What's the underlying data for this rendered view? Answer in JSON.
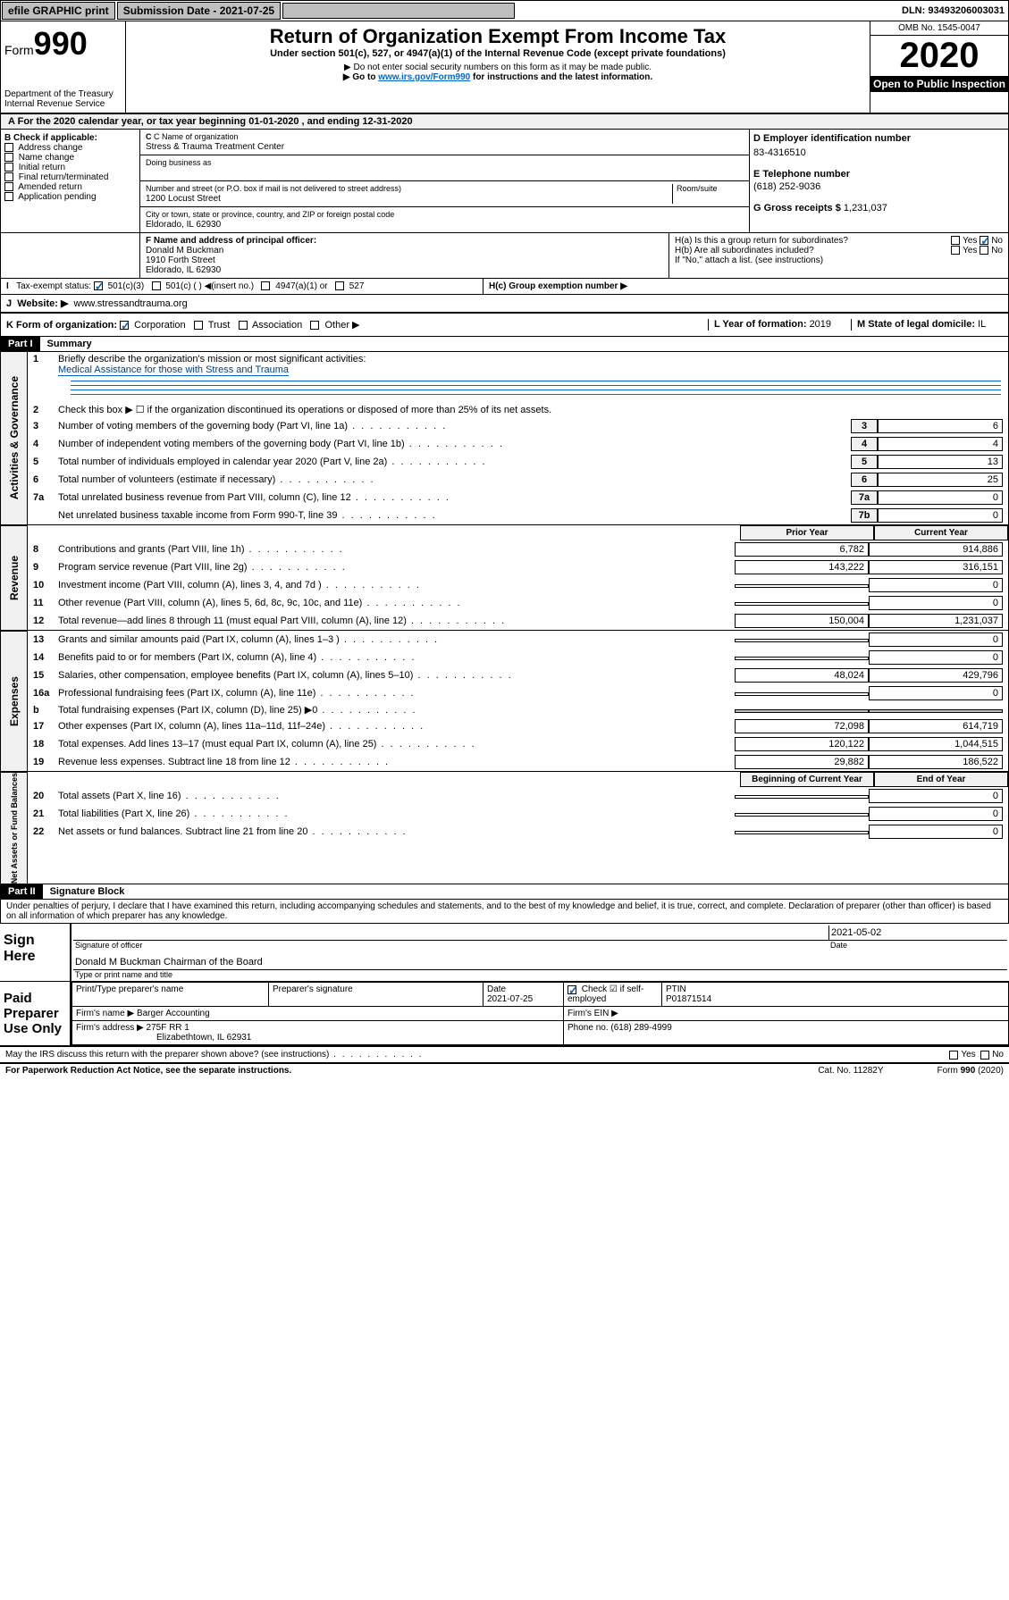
{
  "topbar": {
    "efile": "efile GRAPHIC print",
    "submission_label": "Submission Date - 2021-07-25",
    "dln": "DLN: 93493206003031"
  },
  "header": {
    "form_label": "Form",
    "form_no": "990",
    "dept": "Department of the Treasury",
    "irs": "Internal Revenue Service",
    "title": "Return of Organization Exempt From Income Tax",
    "subtitle": "Under section 501(c), 527, or 4947(a)(1) of the Internal Revenue Code (except private foundations)",
    "note1": "▶ Do not enter social security numbers on this form as it may be made public.",
    "note2_pre": "▶ Go to ",
    "note2_link": "www.irs.gov/Form990",
    "note2_post": " for instructions and the latest information.",
    "omb": "OMB No. 1545-0047",
    "year": "2020",
    "open": "Open to Public Inspection"
  },
  "period": {
    "text": "For the 2020 calendar year, or tax year beginning 01-01-2020   , and ending 12-31-2020"
  },
  "boxB": {
    "label": "B Check if applicable:",
    "items": [
      "Address change",
      "Name change",
      "Initial return",
      "Final return/terminated",
      "Amended return",
      "Application pending"
    ]
  },
  "boxC": {
    "name_label": "C Name of organization",
    "name": "Stress & Trauma Treatment Center",
    "dba_label": "Doing business as",
    "addr_label": "Number and street (or P.O. box if mail is not delivered to street address)",
    "room_label": "Room/suite",
    "addr": "1200 Locust Street",
    "city_label": "City or town, state or province, country, and ZIP or foreign postal code",
    "city": "Eldorado, IL  62930"
  },
  "boxD": {
    "label": "D Employer identification number",
    "value": "83-4316510"
  },
  "boxE": {
    "label": "E Telephone number",
    "value": "(618) 252-9036"
  },
  "boxG": {
    "label": "G Gross receipts $",
    "value": "1,231,037"
  },
  "boxF": {
    "label": "F  Name and address of principal officer:",
    "name": "Donald M Buckman",
    "addr1": "1910 Forth Street",
    "addr2": "Eldorado, IL  62930"
  },
  "boxH": {
    "a": "H(a)  Is this a group return for subordinates?",
    "b": "H(b)  Are all subordinates included?",
    "b_note": "If \"No,\" attach a list. (see instructions)",
    "c": "H(c)  Group exemption number ▶"
  },
  "boxI": {
    "label": "Tax-exempt status:",
    "opts": [
      "501(c)(3)",
      "501(c) (  ) ◀(insert no.)",
      "4947(a)(1) or",
      "527"
    ]
  },
  "boxJ": {
    "label": "Website: ▶",
    "value": "www.stressandtrauma.org"
  },
  "boxK": {
    "label": "K Form of organization:",
    "opts": [
      "Corporation",
      "Trust",
      "Association",
      "Other ▶"
    ]
  },
  "boxL": {
    "label": "L Year of formation: ",
    "value": "2019"
  },
  "boxM": {
    "label": "M State of legal domicile: ",
    "value": "IL"
  },
  "part1": {
    "header": "Part I",
    "title": "Summary",
    "l1_label": "Briefly describe the organization's mission or most significant activities:",
    "l1_text": "Medical Assistance for those with Stress and Trauma",
    "l2": "Check this box ▶ ☐  if the organization discontinued its operations or disposed of more than 25% of its net assets.",
    "lines": [
      {
        "n": "3",
        "t": "Number of voting members of the governing body (Part VI, line 1a)",
        "c": "3",
        "v": "6"
      },
      {
        "n": "4",
        "t": "Number of independent voting members of the governing body (Part VI, line 1b)",
        "c": "4",
        "v": "4"
      },
      {
        "n": "5",
        "t": "Total number of individuals employed in calendar year 2020 (Part V, line 2a)",
        "c": "5",
        "v": "13"
      },
      {
        "n": "6",
        "t": "Total number of volunteers (estimate if necessary)",
        "c": "6",
        "v": "25"
      },
      {
        "n": "7a",
        "t": "Total unrelated business revenue from Part VIII, column (C), line 12",
        "c": "7a",
        "v": "0"
      },
      {
        "n": "",
        "t": "Net unrelated business taxable income from Form 990-T, line 39",
        "c": "7b",
        "v": "0"
      }
    ],
    "col_prior": "Prior Year",
    "col_current": "Current Year",
    "rev": [
      {
        "n": "8",
        "t": "Contributions and grants (Part VIII, line 1h)",
        "p": "6,782",
        "c": "914,886"
      },
      {
        "n": "9",
        "t": "Program service revenue (Part VIII, line 2g)",
        "p": "143,222",
        "c": "316,151"
      },
      {
        "n": "10",
        "t": "Investment income (Part VIII, column (A), lines 3, 4, and 7d )",
        "p": "",
        "c": "0"
      },
      {
        "n": "11",
        "t": "Other revenue (Part VIII, column (A), lines 5, 6d, 8c, 9c, 10c, and 11e)",
        "p": "",
        "c": "0"
      },
      {
        "n": "12",
        "t": "Total revenue—add lines 8 through 11 (must equal Part VIII, column (A), line 12)",
        "p": "150,004",
        "c": "1,231,037"
      }
    ],
    "exp": [
      {
        "n": "13",
        "t": "Grants and similar amounts paid (Part IX, column (A), lines 1–3 )",
        "p": "",
        "c": "0"
      },
      {
        "n": "14",
        "t": "Benefits paid to or for members (Part IX, column (A), line 4)",
        "p": "",
        "c": "0"
      },
      {
        "n": "15",
        "t": "Salaries, other compensation, employee benefits (Part IX, column (A), lines 5–10)",
        "p": "48,024",
        "c": "429,796"
      },
      {
        "n": "16a",
        "t": "Professional fundraising fees (Part IX, column (A), line 11e)",
        "p": "",
        "c": "0"
      },
      {
        "n": "b",
        "t": "Total fundraising expenses (Part IX, column (D), line 25) ▶0",
        "p": "—",
        "c": "—"
      },
      {
        "n": "17",
        "t": "Other expenses (Part IX, column (A), lines 11a–11d, 11f–24e)",
        "p": "72,098",
        "c": "614,719"
      },
      {
        "n": "18",
        "t": "Total expenses. Add lines 13–17 (must equal Part IX, column (A), line 25)",
        "p": "120,122",
        "c": "1,044,515"
      },
      {
        "n": "19",
        "t": "Revenue less expenses. Subtract line 18 from line 12",
        "p": "29,882",
        "c": "186,522"
      }
    ],
    "col_begin": "Beginning of Current Year",
    "col_end": "End of Year",
    "net": [
      {
        "n": "20",
        "t": "Total assets (Part X, line 16)",
        "p": "",
        "c": "0"
      },
      {
        "n": "21",
        "t": "Total liabilities (Part X, line 26)",
        "p": "",
        "c": "0"
      },
      {
        "n": "22",
        "t": "Net assets or fund balances. Subtract line 21 from line 20",
        "p": "",
        "c": "0"
      }
    ],
    "vlabels": {
      "gov": "Activities & Governance",
      "rev": "Revenue",
      "exp": "Expenses",
      "net": "Net Assets or Fund Balances"
    }
  },
  "part2": {
    "header": "Part II",
    "title": "Signature Block",
    "perjury": "Under penalties of perjury, I declare that I have examined this return, including accompanying schedules and statements, and to the best of my knowledge and belief, it is true, correct, and complete. Declaration of preparer (other than officer) is based on all information of which preparer has any knowledge.",
    "sign_here": "Sign Here",
    "sig_date": "2021-05-02",
    "sig_officer": "Signature of officer",
    "date_label": "Date",
    "officer_name": "Donald M Buckman  Chairman of the Board",
    "type_name": "Type or print name and title",
    "paid": "Paid Preparer Use Only",
    "prep_name_label": "Print/Type preparer's name",
    "prep_sig_label": "Preparer's signature",
    "prep_date": "2021-07-25",
    "check_self": "Check ☑ if self-employed",
    "ptin_label": "PTIN",
    "ptin": "P01871514",
    "firm_name_label": "Firm's name    ▶",
    "firm_name": "Barger Accounting",
    "firm_ein": "Firm's EIN ▶",
    "firm_addr_label": "Firm's address ▶",
    "firm_addr1": "275F RR 1",
    "firm_addr2": "Elizabethtown, IL  62931",
    "phone_label": "Phone no.",
    "phone": "(618) 289-4999",
    "discuss": "May the IRS discuss this return with the preparer shown above? (see instructions)"
  },
  "footer": {
    "notice": "For Paperwork Reduction Act Notice, see the separate instructions.",
    "cat": "Cat. No. 11282Y",
    "form": "Form 990 (2020)"
  },
  "yn": {
    "yes": "Yes",
    "no": "No"
  }
}
